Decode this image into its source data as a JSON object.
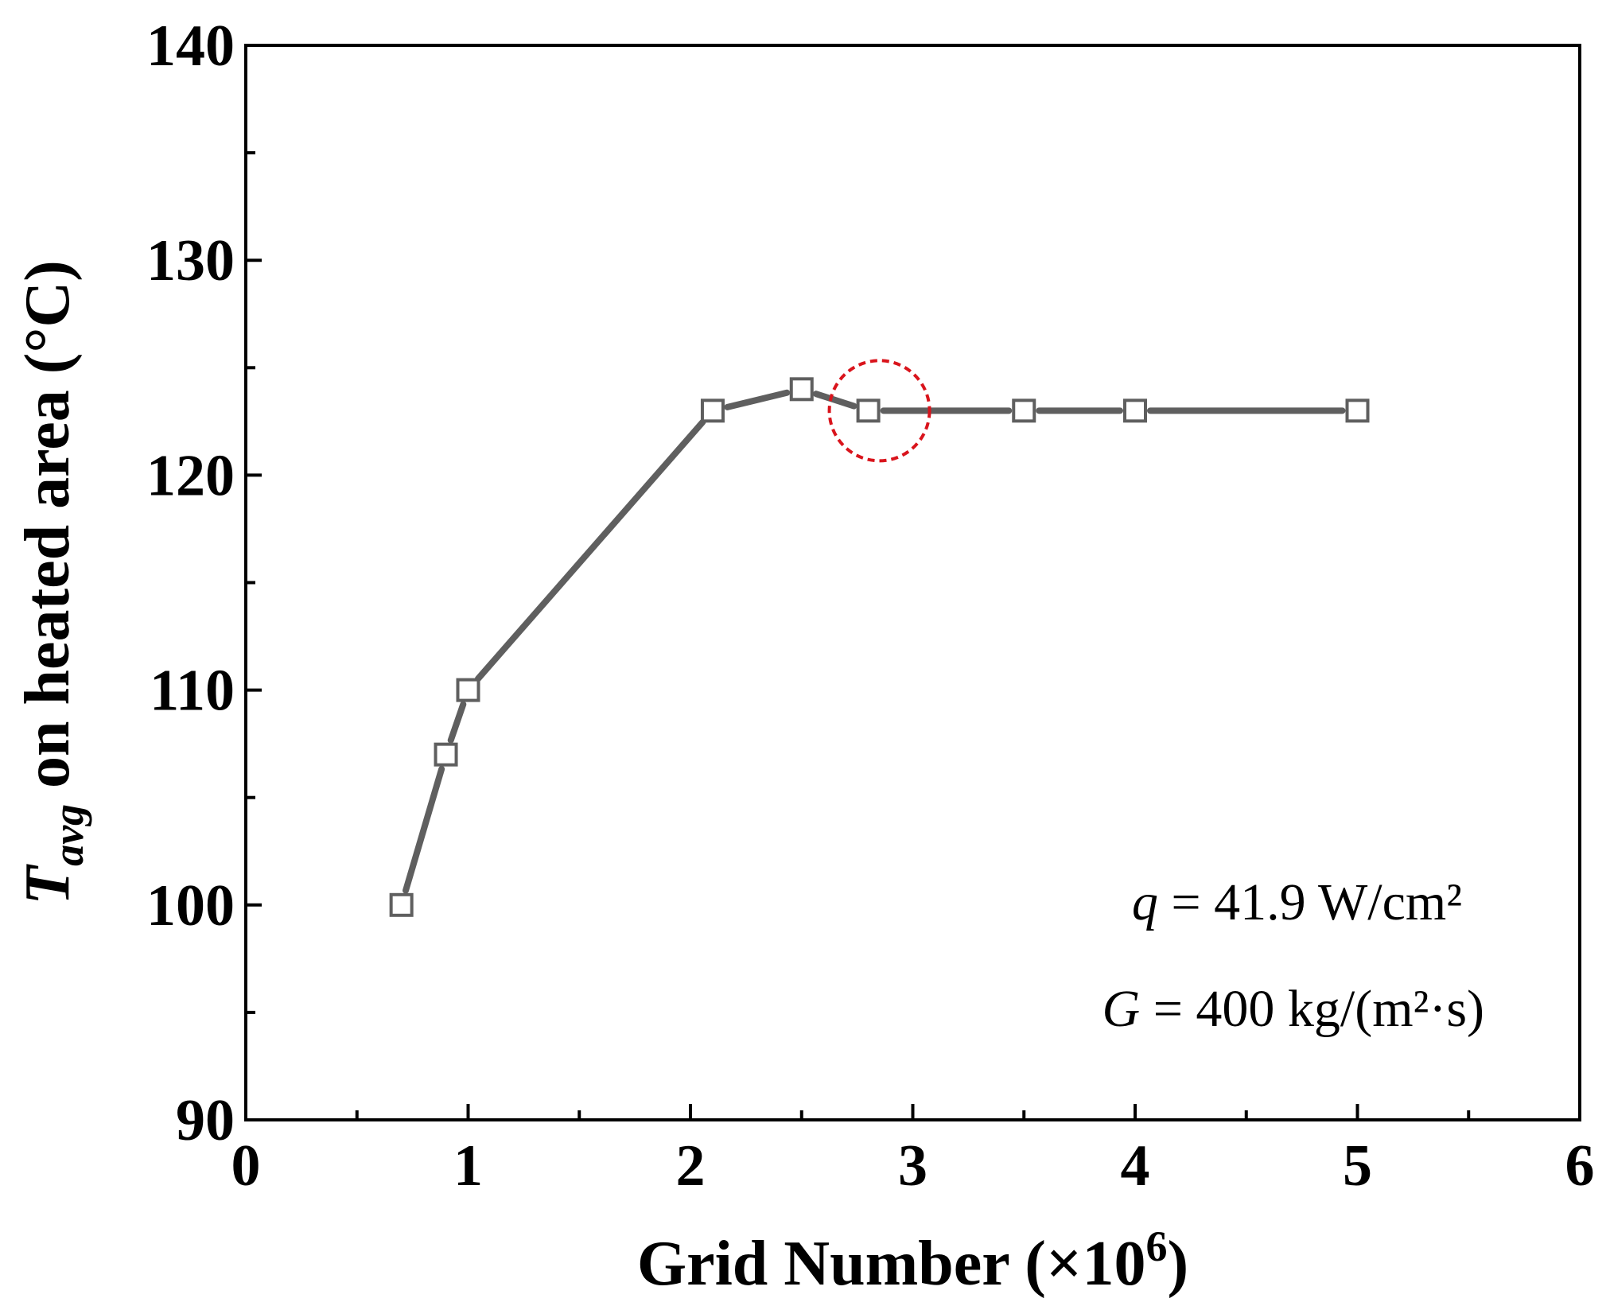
{
  "chart_data": {
    "type": "line",
    "x": [
      0.7,
      0.9,
      1.0,
      2.1,
      2.5,
      2.8,
      3.5,
      4.0,
      5.0
    ],
    "y": [
      100,
      107,
      110,
      123,
      124,
      123,
      123,
      123,
      123
    ],
    "xlim": [
      0,
      6
    ],
    "ylim": [
      90,
      140
    ],
    "x_ticks": [
      "0",
      "1",
      "2",
      "3",
      "4",
      "5",
      "6"
    ],
    "y_ticks": [
      "90",
      "100",
      "110",
      "120",
      "130",
      "140"
    ],
    "xlabel": {
      "main": "Grid Number (×10",
      "sup": "6",
      "end": ")"
    },
    "ylabel": {
      "symbol": "T",
      "sub": "avg",
      "rest": " on heated area (°C)"
    },
    "annotations": {
      "line1": {
        "symbol": "q",
        "text": " = 41.9 W/cm²"
      },
      "line2": {
        "symbol": "G",
        "text": " = 400 kg/(m²·s)"
      }
    },
    "highlight": {
      "x": 2.85,
      "y": 123,
      "style": "dashed-circle"
    },
    "marker": "open-square",
    "grid": false,
    "colors": {
      "series": "#5f5f5f",
      "highlight": "#d9141c",
      "axes": "#000000"
    }
  }
}
